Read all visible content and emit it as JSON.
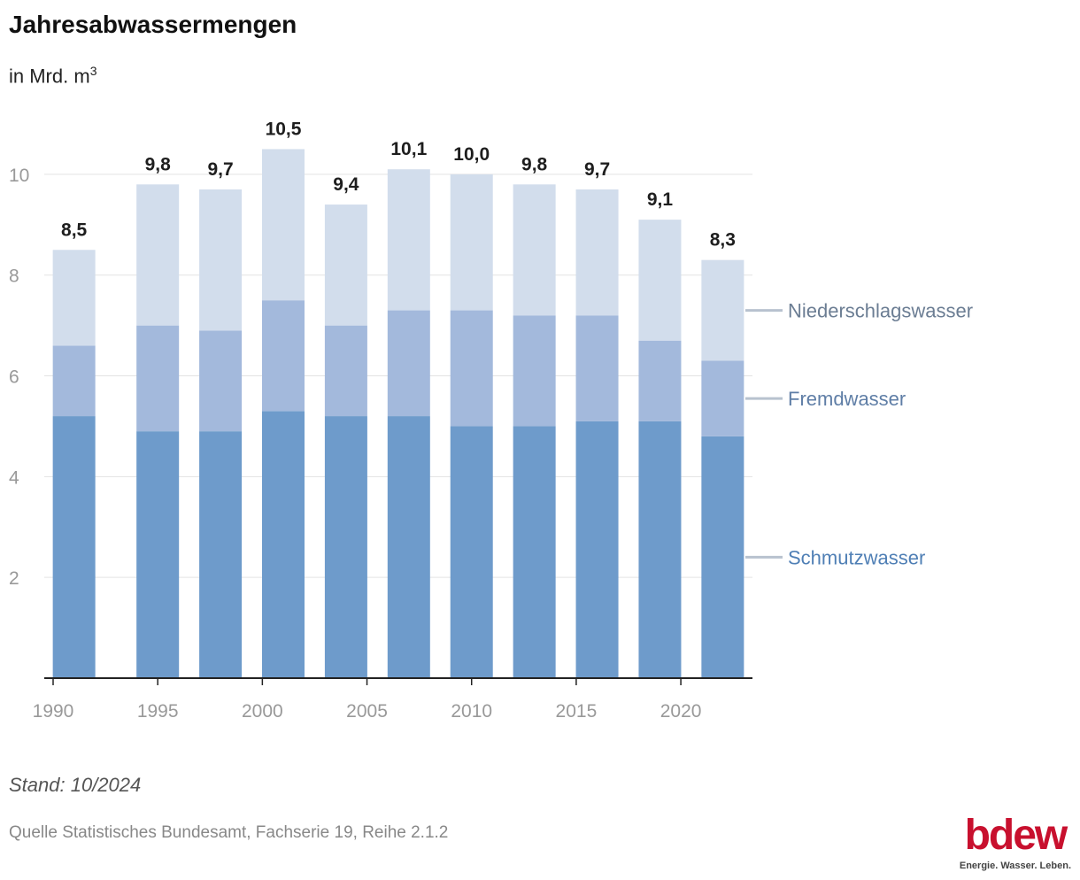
{
  "title": "Jahresabwassermengen",
  "subtitle": "in Mrd. m",
  "subtitle_sup": "3",
  "footer": {
    "stand": "Stand: 10/2024",
    "source": "Quelle Statistisches Bundesamt, Fachserie 19, Reihe 2.1.2"
  },
  "logo": {
    "word": "bdew",
    "tagline": "Energie. Wasser. Leben."
  },
  "colors": {
    "schmutzwasser": "#6e9bcb",
    "fremdwasser": "#a3b9dc",
    "niederschlagswasser": "#d2ddec",
    "accent": "#c8102e"
  },
  "chart_data": {
    "type": "bar",
    "stacked": true,
    "title": "Jahresabwassermengen",
    "ylabel": "in Mrd. m³",
    "ylim": [
      0,
      11
    ],
    "yticks": [
      "2",
      "4",
      "6",
      "8",
      "10"
    ],
    "xlim": [
      1990,
      2023
    ],
    "xticks": [
      "1990",
      "1995",
      "2000",
      "2005",
      "2010",
      "2015",
      "2020"
    ],
    "x": [
      1991,
      1995,
      1998,
      2001,
      2004,
      2007,
      2010,
      2013,
      2016,
      2019,
      2022
    ],
    "totals": [
      "8,5",
      "9,8",
      "9,7",
      "10,5",
      "9,4",
      "10,1",
      "10,0",
      "9,8",
      "9,7",
      "9,1",
      "8,3"
    ],
    "series": [
      {
        "name": "Schmutzwasser",
        "values": [
          5.2,
          4.9,
          4.9,
          5.3,
          5.2,
          5.2,
          5.0,
          5.0,
          5.1,
          5.1,
          4.8
        ]
      },
      {
        "name": "Fremdwasser",
        "values": [
          1.4,
          2.1,
          2.0,
          2.2,
          1.8,
          2.1,
          2.3,
          2.2,
          2.1,
          1.6,
          1.5
        ]
      },
      {
        "name": "Niederschlagswasser",
        "values": [
          1.9,
          2.8,
          2.8,
          3.0,
          2.4,
          2.8,
          2.7,
          2.6,
          2.5,
          2.4,
          2.0
        ]
      }
    ],
    "legend": [
      "Niederschlagswasser",
      "Fremdwasser",
      "Schmutzwasser"
    ],
    "legend_position": "right, inline",
    "grid": true
  }
}
